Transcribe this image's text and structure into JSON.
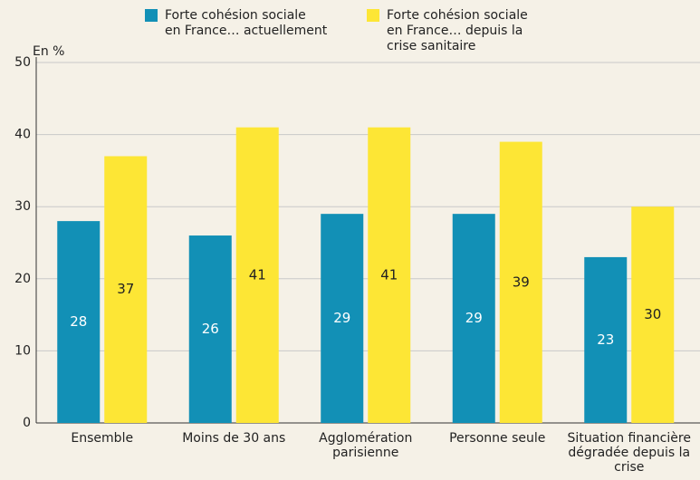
{
  "chart_data": {
    "type": "bar",
    "y_label": "En %",
    "categories": [
      "Ensemble",
      "Moins de 30 ans",
      "Agglomération parisienne",
      "Personne seule",
      "Situation financière dégradée depuis la crise"
    ],
    "series": [
      {
        "name": "Forte cohésion sociale en France… actuellement",
        "color": "#1290b6",
        "values": [
          28,
          26,
          29,
          29,
          23
        ]
      },
      {
        "name": "Forte cohésion sociale en France… depuis la crise sanitaire",
        "color": "#fde635",
        "values": [
          37,
          41,
          41,
          39,
          30
        ]
      }
    ],
    "ylim": [
      0,
      50
    ],
    "yticks": [
      0,
      10,
      20,
      30,
      40,
      50
    ],
    "grid": true,
    "legend": "top"
  }
}
